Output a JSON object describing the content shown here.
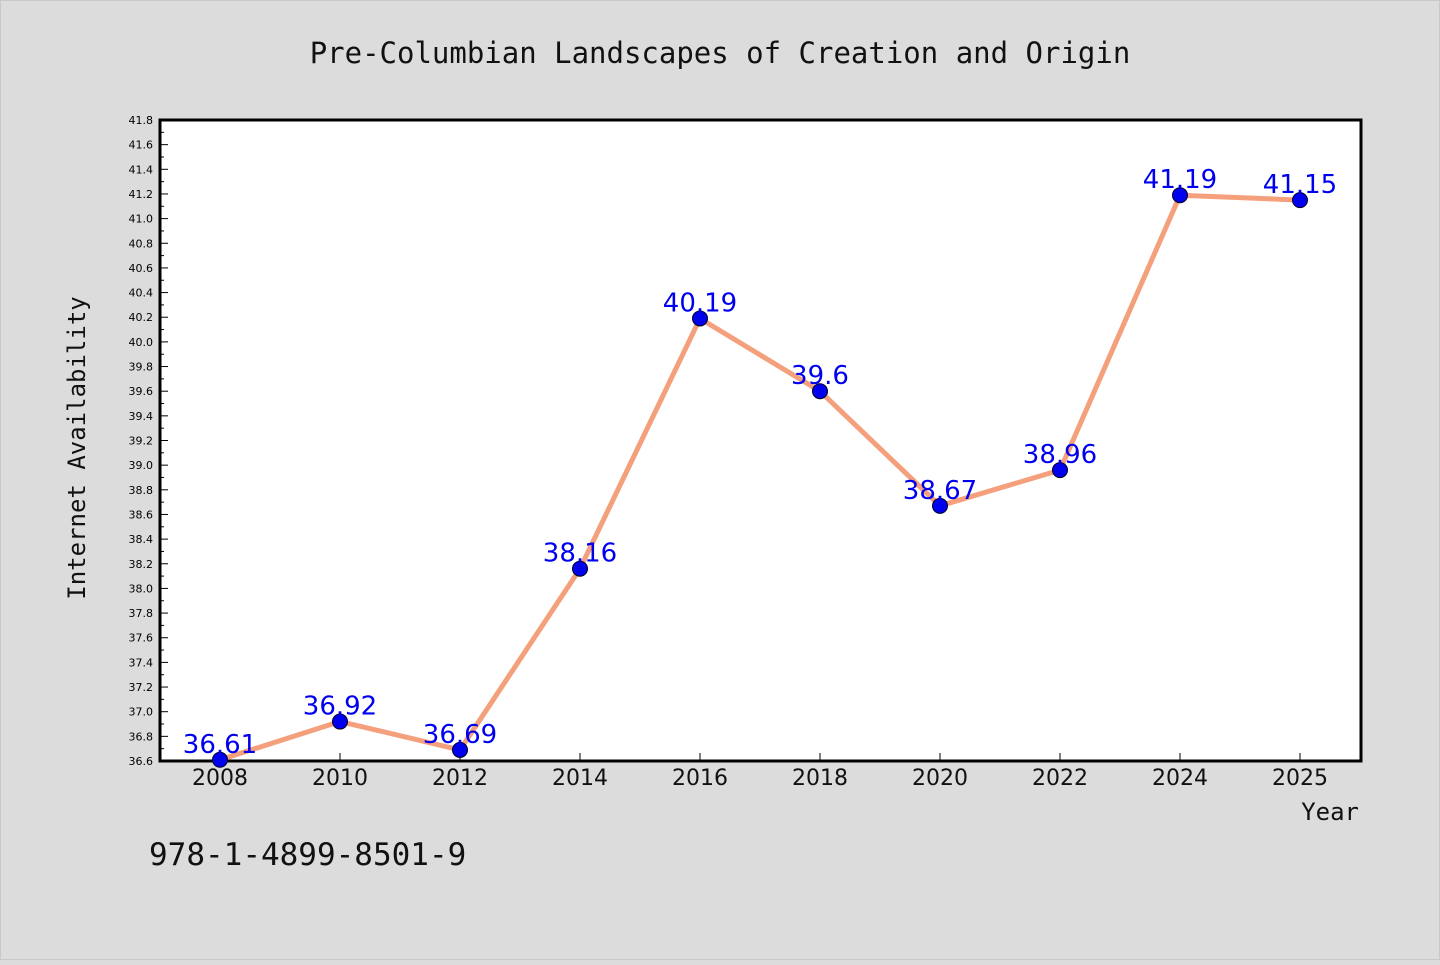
{
  "chart_data": {
    "type": "line",
    "title": "Pre-Columbian Landscapes of Creation and Origin",
    "xlabel": "Year",
    "ylabel": "Internet Availability",
    "categories": [
      "2008",
      "2010",
      "2012",
      "2014",
      "2016",
      "2018",
      "2020",
      "2022",
      "2024",
      "2025"
    ],
    "series": [
      {
        "values": [
          36.61,
          36.92,
          36.69,
          38.16,
          40.19,
          39.6,
          38.67,
          38.96,
          41.19,
          41.15
        ],
        "labels": [
          "36.61",
          "36.92",
          "36.69",
          "38.16",
          "40.19",
          "39.6",
          "38.67",
          "38.96",
          "41.19",
          "41.15"
        ]
      }
    ],
    "ylim": [
      36.6,
      41.8
    ],
    "ytick_step": 0.2,
    "grid": false,
    "legend": "none",
    "colors": {
      "line": "#f4a07c",
      "marker": "#0000ee",
      "label": "#0000ee",
      "background": "#dcdcdc",
      "plot": "#ffffff"
    }
  },
  "footer_text": "978-1-4899-8501-9"
}
